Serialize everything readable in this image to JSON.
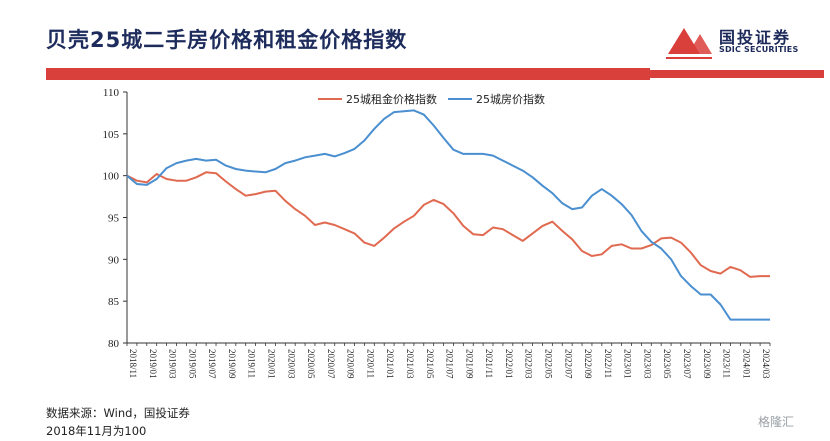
{
  "header": {
    "title": "贝壳25城二手房价格和租金价格指数",
    "logo_name": "国投证券",
    "logo_sub": "SDIC SECURITIES"
  },
  "chart_data": {
    "type": "line",
    "title": "",
    "xlabel": "",
    "ylabel": "",
    "ylim": [
      80,
      110
    ],
    "yticks": [
      80,
      85,
      90,
      95,
      100,
      105,
      110
    ],
    "legend_position": "top",
    "categories": [
      "2018/11",
      "2018/12",
      "2019/01",
      "2019/02",
      "2019/03",
      "2019/04",
      "2019/05",
      "2019/06",
      "2019/07",
      "2019/08",
      "2019/09",
      "2019/10",
      "2019/11",
      "2019/12",
      "2020/01",
      "2020/02",
      "2020/03",
      "2020/04",
      "2020/05",
      "2020/06",
      "2020/07",
      "2020/08",
      "2020/09",
      "2020/10",
      "2020/11",
      "2020/12",
      "2021/01",
      "2021/02",
      "2021/03",
      "2021/04",
      "2021/05",
      "2021/06",
      "2021/07",
      "2021/08",
      "2021/09",
      "2021/10",
      "2021/11",
      "2021/12",
      "2022/01",
      "2022/02",
      "2022/03",
      "2022/04",
      "2022/05",
      "2022/06",
      "2022/07",
      "2022/08",
      "2022/09",
      "2022/10",
      "2022/11",
      "2022/12",
      "2023/01",
      "2023/02",
      "2023/03",
      "2023/04",
      "2023/05",
      "2023/06",
      "2023/07",
      "2023/08",
      "2023/09",
      "2023/10",
      "2023/11",
      "2023/12",
      "2024/01",
      "2024/02",
      "2024/03",
      "2024/04"
    ],
    "tick_labels": [
      "2018/11",
      "2019/01",
      "2019/03",
      "2019/05",
      "2019/07",
      "2019/09",
      "2019/11",
      "2020/01",
      "2020/03",
      "2020/05",
      "2020/07",
      "2020/09",
      "2020/11",
      "2021/01",
      "2021/03",
      "2021/05",
      "2021/07",
      "2021/09",
      "2021/11",
      "2022/01",
      "2022/03",
      "2022/05",
      "2022/07",
      "2022/09",
      "2022/11",
      "2023/01",
      "2023/03",
      "2023/05",
      "2023/07",
      "2023/09",
      "2023/11",
      "2024/01",
      "2024/03"
    ],
    "series": [
      {
        "name": "25城租金价格指数",
        "color": "#e06a50",
        "values": [
          100.0,
          99.4,
          99.2,
          100.2,
          99.6,
          99.4,
          99.4,
          99.8,
          100.4,
          100.3,
          99.3,
          98.4,
          97.6,
          97.8,
          98.1,
          98.2,
          97.0,
          96.0,
          95.2,
          94.1,
          94.4,
          94.1,
          93.6,
          93.1,
          92.0,
          91.6,
          92.6,
          93.7,
          94.5,
          95.2,
          96.5,
          97.1,
          96.6,
          95.5,
          94.0,
          93.0,
          92.9,
          93.8,
          93.6,
          92.9,
          92.2,
          93.1,
          94.0,
          94.5,
          93.4,
          92.4,
          91.0,
          90.4,
          90.6,
          91.6,
          91.8,
          91.3,
          91.3,
          91.7,
          92.5,
          92.6,
          92.0,
          90.8,
          89.3,
          88.6,
          88.3,
          89.1,
          88.7,
          87.9,
          88.0,
          88.0
        ]
      },
      {
        "name": "25城房价指数",
        "color": "#4a8fd0",
        "values": [
          100.0,
          99.0,
          98.9,
          99.6,
          100.9,
          101.5,
          101.8,
          102.0,
          101.8,
          101.9,
          101.2,
          100.8,
          100.6,
          100.5,
          100.4,
          100.8,
          101.5,
          101.8,
          102.2,
          102.4,
          102.6,
          102.3,
          102.7,
          103.2,
          104.2,
          105.6,
          106.8,
          107.6,
          107.7,
          107.8,
          107.3,
          106.0,
          104.5,
          103.1,
          102.6,
          102.6,
          102.6,
          102.4,
          101.8,
          101.2,
          100.6,
          99.8,
          98.8,
          97.9,
          96.7,
          96.0,
          96.2,
          97.6,
          98.4,
          97.6,
          96.6,
          95.3,
          93.4,
          92.1,
          91.3,
          90.0,
          88.0,
          86.8,
          85.8,
          85.8,
          84.6,
          82.8,
          82.8,
          82.8,
          82.8,
          82.8
        ]
      }
    ]
  },
  "footnotes": {
    "source": "数据来源：Wind，国投证券",
    "base": "2018年11月为100"
  },
  "watermark": "格隆汇"
}
